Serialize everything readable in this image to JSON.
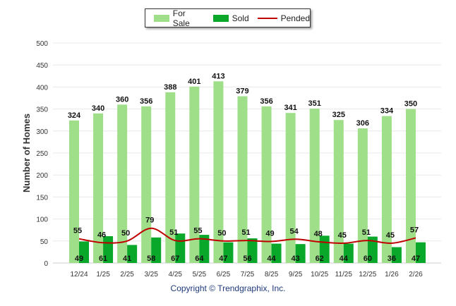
{
  "chart_data": {
    "type": "bar",
    "title": "",
    "xlabel": "",
    "ylabel": "Number of Homes",
    "ylim": [
      0,
      500
    ],
    "yticks": [
      0,
      50,
      100,
      150,
      200,
      250,
      300,
      350,
      400,
      450,
      500
    ],
    "categories": [
      "12/24",
      "1/25",
      "2/25",
      "3/25",
      "4/25",
      "5/25",
      "6/25",
      "7/25",
      "8/25",
      "9/25",
      "10/25",
      "11/25",
      "12/25",
      "1/26",
      "2/26"
    ],
    "series": [
      {
        "name": "For Sale",
        "type": "bar",
        "color": "#a0df8a",
        "values": [
          324,
          340,
          360,
          356,
          388,
          401,
          413,
          379,
          356,
          341,
          351,
          325,
          306,
          334,
          350
        ]
      },
      {
        "name": "Sold",
        "type": "bar",
        "color": "#0aa82a",
        "values": [
          49,
          61,
          41,
          58,
          67,
          64,
          47,
          56,
          44,
          43,
          62,
          44,
          60,
          36,
          47
        ]
      },
      {
        "name": "Pended",
        "type": "line",
        "color": "#c00000",
        "values": [
          55,
          46,
          50,
          79,
          51,
          55,
          50,
          51,
          49,
          54,
          48,
          45,
          51,
          45,
          57
        ]
      }
    ],
    "legend": "top-center",
    "grid": true
  },
  "copyright": "Copyright © Trendgraphix, Inc."
}
